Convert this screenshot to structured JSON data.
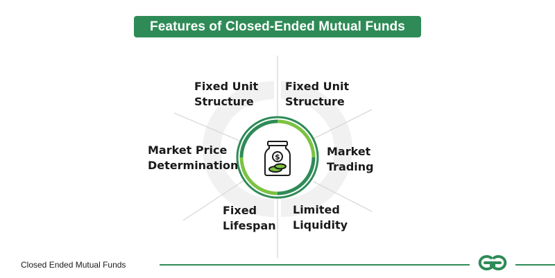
{
  "header": {
    "title": "Features of Closed-Ended Mutual Funds"
  },
  "diagram": {
    "center_icon": "money-jar-icon",
    "features": [
      {
        "id": "top-left",
        "label": "Fixed Unit\nStructure"
      },
      {
        "id": "top-right",
        "label": "Fixed Unit\nStructure"
      },
      {
        "id": "left",
        "label": "Market Price\nDetermination"
      },
      {
        "id": "right",
        "label": "Market\nTrading"
      },
      {
        "id": "bottom-left",
        "label": "Fixed\nLifespan"
      },
      {
        "id": "bottom-right",
        "label": "Limited\nLiquidity"
      }
    ]
  },
  "footer": {
    "caption": "Closed Ended Mutual Funds",
    "logo": "gfg-logo-icon"
  },
  "colors": {
    "accent": "#2e8b57",
    "ring_light": "#7cc242",
    "divider": "#d9d9d9",
    "watermark": "#f0f0f0"
  }
}
